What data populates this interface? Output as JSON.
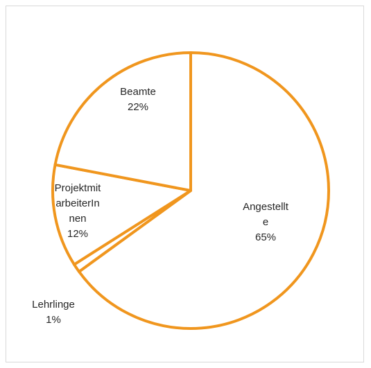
{
  "chart_data": {
    "type": "pie",
    "title": "",
    "slices": [
      {
        "name": "Angestellte",
        "value": 65,
        "label_lines": [
          "Angestellt",
          "e",
          "65%"
        ]
      },
      {
        "name": "Lehrlinge",
        "value": 1,
        "label_lines": [
          "Lehrlinge",
          "1%"
        ]
      },
      {
        "name": "ProjektmitarbeiterInnen",
        "value": 12,
        "label_lines": [
          "Projektmit",
          "arbeiterIn",
          "nen",
          "12%"
        ]
      },
      {
        "name": "Beamte",
        "value": 22,
        "label_lines": [
          "Beamte",
          "22%"
        ]
      }
    ],
    "colors": {
      "fill": "#ffffff",
      "stroke": "#f0961e"
    },
    "legend": "none",
    "start_angle": "12 o'clock",
    "direction": "clockwise"
  }
}
